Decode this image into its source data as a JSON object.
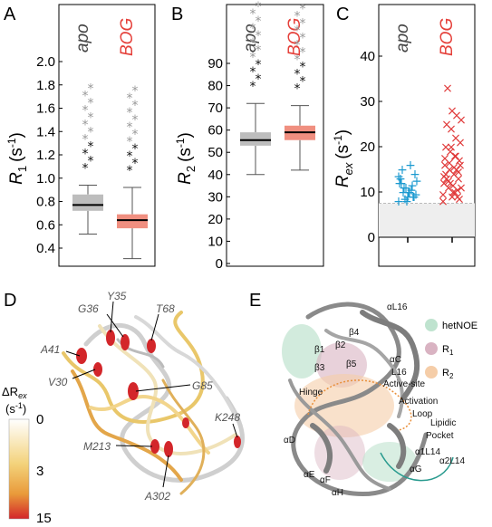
{
  "panels": {
    "A": {
      "label": "A",
      "ylabel_main": "R",
      "ylabel_sub": "1",
      "ylabel_unit": "(s",
      "ylabel_exp": "-1",
      "ylabel_close": ")",
      "conditions": [
        "apo",
        "BOG"
      ],
      "ticks": [
        "2.0",
        "1.8",
        "1.6",
        "1.4",
        "1.2",
        "1.0",
        "0.8",
        "0.6",
        "0.4"
      ]
    },
    "B": {
      "label": "B",
      "ylabel_main": "R",
      "ylabel_sub": "2",
      "ylabel_unit": "(s",
      "ylabel_exp": "-1",
      "ylabel_close": ")",
      "conditions": [
        "apo",
        "BOG"
      ],
      "ticks": [
        "90",
        "80",
        "70",
        "60",
        "50",
        "40",
        "30",
        "20",
        "10",
        "0"
      ]
    },
    "C": {
      "label": "C",
      "ylabel_main": "R",
      "ylabel_sub": "ex",
      "ylabel_unit": "(s",
      "ylabel_exp": "-1",
      "ylabel_close": ")",
      "conditions": [
        "apo",
        "BOG"
      ],
      "ticks": [
        "40",
        "30",
        "20",
        "10",
        "0"
      ]
    },
    "D": {
      "label": "D",
      "colorbar": {
        "title_main": "ΔR",
        "title_sub": "ex",
        "unit": "(s",
        "unit_exp": "-1",
        "unit_close": ")",
        "ticks": [
          "0",
          "3",
          "15"
        ]
      },
      "residues": [
        "Y35",
        "G36",
        "T68",
        "A41",
        "V30",
        "G85",
        "K248",
        "M213",
        "A302"
      ]
    },
    "E": {
      "label": "E",
      "legend": [
        {
          "text": "hetNOE",
          "color": "#bfe3cf"
        },
        {
          "text": "R",
          "sub": "1",
          "color": "#d9b3c2"
        },
        {
          "text": "R",
          "sub": "2",
          "color": "#f5cda8"
        }
      ],
      "labels": {
        "aL16": "αL16",
        "b1": "β1",
        "b2": "β2",
        "b4": "β4",
        "b3": "β3",
        "b5": "β5",
        "aC": "αC",
        "L16": "L16",
        "active": "Active-site",
        "hinge": "Hinge",
        "activation1": "Activation",
        "activation2": "Loop",
        "lipidic1": "Lipidic",
        "lipidic2": "Pocket",
        "aD": "αD",
        "a1L14": "α1L14",
        "a2L14": "α2L14",
        "aE": "αE",
        "aF": "αF",
        "aG": "αG",
        "aH": "αH"
      }
    }
  },
  "colors": {
    "apo": "#444444",
    "bog": "#e5403a",
    "apo_box": "#bdbdbd",
    "bog_box": "#f08f80",
    "rex_apo": "#1c9ad0",
    "rex_bog": "#e03a3a"
  },
  "chart_data": [
    {
      "type": "box",
      "panel": "A",
      "ylim": [
        0.3,
        2.1
      ],
      "categories": [
        "apo",
        "BOG"
      ],
      "series": [
        {
          "name": "apo",
          "median": 0.77,
          "q1": 0.72,
          "q3": 0.86,
          "whisker_low": 0.52,
          "whisker_high": 0.94
        },
        {
          "name": "BOG",
          "median": 0.64,
          "q1": 0.57,
          "q3": 0.69,
          "whisker_low": 0.31,
          "whisker_high": 0.92
        }
      ]
    },
    {
      "type": "box",
      "panel": "B",
      "ylim": [
        0,
        95
      ],
      "categories": [
        "apo",
        "BOG"
      ],
      "series": [
        {
          "name": "apo",
          "median": 55.5,
          "q1": 53,
          "q3": 59,
          "whisker_low": 40,
          "whisker_high": 72
        },
        {
          "name": "BOG",
          "median": 59,
          "q1": 55.5,
          "q3": 62,
          "whisker_low": 42,
          "whisker_high": 71
        }
      ]
    },
    {
      "type": "scatter",
      "panel": "C",
      "ylim": [
        0,
        47
      ],
      "categories": [
        "apo",
        "BOG"
      ],
      "threshold": 7.5,
      "series": [
        {
          "name": "apo",
          "values": [
            8,
            9,
            10,
            11,
            12,
            9,
            10,
            8.5,
            13,
            14,
            16,
            11,
            12,
            9.5,
            10.5,
            8,
            15,
            12.5,
            11.5,
            9,
            10,
            13.5
          ]
        },
        {
          "name": "BOG",
          "values": [
            8,
            9,
            10,
            11,
            12,
            13,
            14,
            15,
            16,
            17,
            18,
            19,
            20,
            21,
            22,
            24,
            25,
            26,
            27,
            28,
            33,
            9.5,
            10.5,
            11.5,
            12.5,
            13.5,
            14.5,
            15.5,
            16.5,
            17.5,
            8.5,
            10,
            12,
            14,
            16,
            18,
            20,
            13,
            11,
            15,
            9
          ]
        }
      ]
    }
  ]
}
